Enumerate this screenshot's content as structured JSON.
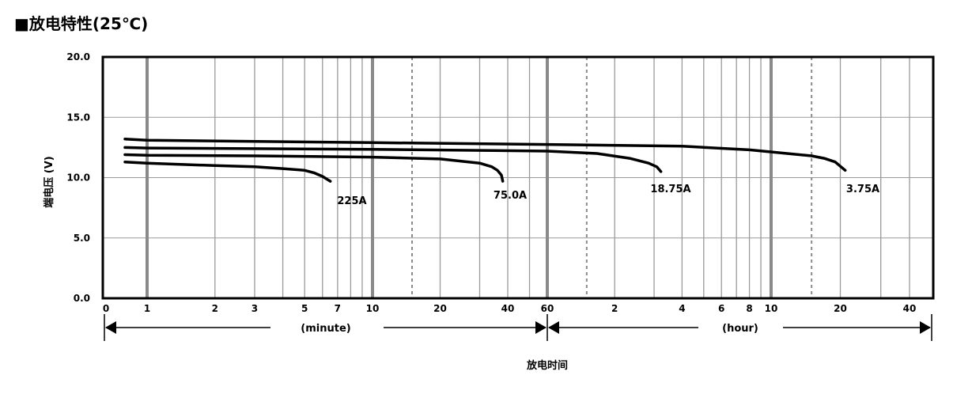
{
  "title": "■放电特性(25℃)",
  "chart_data": {
    "type": "line",
    "title": "■放电特性(25℃)",
    "xlabel": "放电时间",
    "ylabel": "端电压 (V)",
    "ylim": [
      0,
      20
    ],
    "grid": true,
    "x_scale": "log",
    "y_ticks": [
      "20.0",
      "15.0",
      "10.0",
      "5.0",
      "0.0"
    ],
    "x_units": [
      "(minute)",
      "(hour)"
    ],
    "x_tick_labels": {
      "minute": [
        "0",
        "1",
        "2",
        "3",
        "5",
        "7",
        "10",
        "20",
        "40",
        "60"
      ],
      "hour": [
        "2",
        "4",
        "6",
        "8",
        "10",
        "20",
        "40"
      ]
    },
    "series": [
      {
        "name": "225A",
        "points": [
          [
            0.5,
            11.3
          ],
          [
            1,
            11.2
          ],
          [
            2,
            11.0
          ],
          [
            3,
            10.9
          ],
          [
            4,
            10.75
          ],
          [
            5,
            10.6
          ],
          [
            5.5,
            10.4
          ],
          [
            6,
            10.1
          ],
          [
            6.5,
            9.7
          ]
        ]
      },
      {
        "name": "75.0A",
        "points": [
          [
            0.5,
            11.9
          ],
          [
            1,
            11.85
          ],
          [
            3,
            11.8
          ],
          [
            10,
            11.7
          ],
          [
            20,
            11.55
          ],
          [
            30,
            11.2
          ],
          [
            34,
            10.9
          ],
          [
            36,
            10.6
          ],
          [
            37.5,
            10.2
          ],
          [
            38,
            9.7
          ]
        ]
      },
      {
        "name": "18.75A",
        "points": [
          [
            0.5,
            12.5
          ],
          [
            1,
            12.45
          ],
          [
            10,
            12.35
          ],
          [
            60,
            12.2
          ],
          [
            100,
            12.0
          ],
          [
            140,
            11.6
          ],
          [
            170,
            11.2
          ],
          [
            185,
            10.9
          ],
          [
            193,
            10.5
          ]
        ]
      },
      {
        "name": "3.75A",
        "points": [
          [
            0.5,
            13.2
          ],
          [
            1,
            13.1
          ],
          [
            10,
            12.9
          ],
          [
            60,
            12.75
          ],
          [
            240,
            12.6
          ],
          [
            480,
            12.3
          ],
          [
            900,
            11.8
          ],
          [
            1020,
            11.6
          ],
          [
            1140,
            11.3
          ],
          [
            1260,
            10.6
          ]
        ]
      }
    ]
  }
}
